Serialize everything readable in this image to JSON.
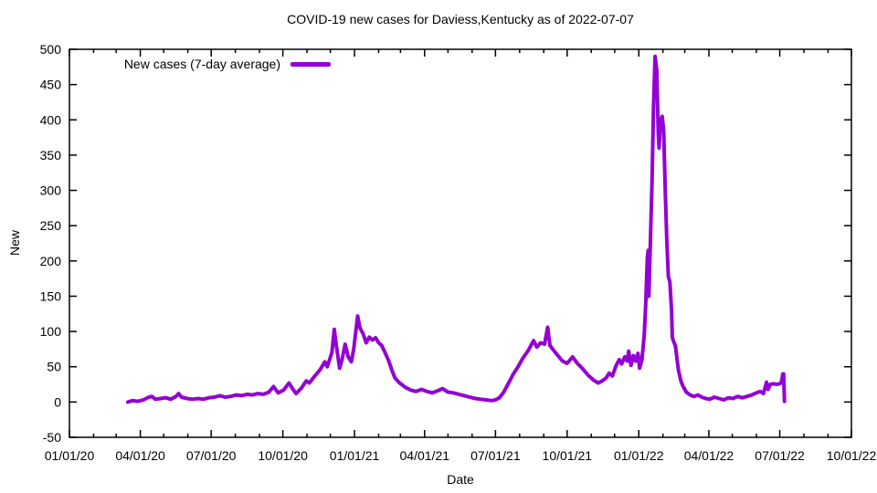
{
  "chart_data": {
    "type": "line",
    "title": "COVID-19 new cases for Daviess,Kentucky as of 2022-07-07",
    "xlabel": "Date",
    "ylabel": "New",
    "background_color": "#ffffff",
    "axis_color": "#000000",
    "grid": false,
    "legend_position": "top-left-inside",
    "legend": [
      {
        "name": "New cases (7-day average)",
        "color": "#9400d3"
      }
    ],
    "x_range": [
      "2020-01-01",
      "2022-10-01"
    ],
    "ylim": [
      -50,
      500
    ],
    "y_tick_step": 50,
    "y_tick_labels": [
      "-50",
      "0",
      "50",
      "100",
      "150",
      "200",
      "250",
      "300",
      "350",
      "400",
      "450",
      "500"
    ],
    "x_tick_labels": [
      "01/01/20",
      "04/01/20",
      "07/01/20",
      "10/01/20",
      "01/01/21",
      "04/01/21",
      "07/01/21",
      "10/01/21",
      "01/01/22",
      "04/01/22",
      "07/01/22",
      "10/01/22"
    ],
    "x_minor_tick_interval": "month",
    "series": [
      {
        "name": "New cases (7-day average)",
        "color": "#9400d3",
        "points": [
          [
            "2020-03-16",
            0
          ],
          [
            "2020-03-22",
            2
          ],
          [
            "2020-03-29",
            1
          ],
          [
            "2020-04-05",
            3
          ],
          [
            "2020-04-12",
            7
          ],
          [
            "2020-04-16",
            8
          ],
          [
            "2020-04-20",
            4
          ],
          [
            "2020-04-27",
            5
          ],
          [
            "2020-05-04",
            6
          ],
          [
            "2020-05-10",
            4
          ],
          [
            "2020-05-17",
            8
          ],
          [
            "2020-05-20",
            12
          ],
          [
            "2020-05-24",
            7
          ],
          [
            "2020-05-31",
            5
          ],
          [
            "2020-06-07",
            4
          ],
          [
            "2020-06-14",
            5
          ],
          [
            "2020-06-21",
            4
          ],
          [
            "2020-06-28",
            6
          ],
          [
            "2020-07-05",
            7
          ],
          [
            "2020-07-12",
            9
          ],
          [
            "2020-07-19",
            7
          ],
          [
            "2020-07-26",
            8
          ],
          [
            "2020-08-02",
            10
          ],
          [
            "2020-08-09",
            9
          ],
          [
            "2020-08-16",
            11
          ],
          [
            "2020-08-23",
            10
          ],
          [
            "2020-08-30",
            12
          ],
          [
            "2020-09-06",
            11
          ],
          [
            "2020-09-13",
            14
          ],
          [
            "2020-09-19",
            22
          ],
          [
            "2020-09-25",
            13
          ],
          [
            "2020-10-02",
            17
          ],
          [
            "2020-10-09",
            27
          ],
          [
            "2020-10-14",
            18
          ],
          [
            "2020-10-18",
            12
          ],
          [
            "2020-10-25",
            20
          ],
          [
            "2020-10-31",
            30
          ],
          [
            "2020-11-04",
            27
          ],
          [
            "2020-11-11",
            37
          ],
          [
            "2020-11-18",
            46
          ],
          [
            "2020-11-24",
            57
          ],
          [
            "2020-11-27",
            50
          ],
          [
            "2020-12-03",
            70
          ],
          [
            "2020-12-06",
            103
          ],
          [
            "2020-12-09",
            78
          ],
          [
            "2020-12-13",
            48
          ],
          [
            "2020-12-16",
            60
          ],
          [
            "2020-12-20",
            82
          ],
          [
            "2020-12-24",
            64
          ],
          [
            "2020-12-28",
            57
          ],
          [
            "2020-12-31",
            75
          ],
          [
            "2021-01-05",
            122
          ],
          [
            "2021-01-08",
            105
          ],
          [
            "2021-01-12",
            97
          ],
          [
            "2021-01-16",
            84
          ],
          [
            "2021-01-20",
            92
          ],
          [
            "2021-01-24",
            88
          ],
          [
            "2021-01-28",
            91
          ],
          [
            "2021-02-01",
            84
          ],
          [
            "2021-02-05",
            80
          ],
          [
            "2021-02-10",
            68
          ],
          [
            "2021-02-14",
            58
          ],
          [
            "2021-02-18",
            45
          ],
          [
            "2021-02-22",
            34
          ],
          [
            "2021-02-28",
            27
          ],
          [
            "2021-03-07",
            21
          ],
          [
            "2021-03-14",
            17
          ],
          [
            "2021-03-21",
            15
          ],
          [
            "2021-03-28",
            18
          ],
          [
            "2021-04-04",
            15
          ],
          [
            "2021-04-11",
            13
          ],
          [
            "2021-04-18",
            16
          ],
          [
            "2021-04-24",
            19
          ],
          [
            "2021-05-01",
            14
          ],
          [
            "2021-05-08",
            13
          ],
          [
            "2021-05-15",
            11
          ],
          [
            "2021-05-22",
            9
          ],
          [
            "2021-05-29",
            7
          ],
          [
            "2021-06-05",
            5
          ],
          [
            "2021-06-12",
            4
          ],
          [
            "2021-06-19",
            3
          ],
          [
            "2021-06-26",
            2
          ],
          [
            "2021-07-01",
            3
          ],
          [
            "2021-07-06",
            6
          ],
          [
            "2021-07-11",
            13
          ],
          [
            "2021-07-17",
            25
          ],
          [
            "2021-07-24",
            40
          ],
          [
            "2021-07-30",
            50
          ],
          [
            "2021-08-05",
            62
          ],
          [
            "2021-08-12",
            73
          ],
          [
            "2021-08-19",
            87
          ],
          [
            "2021-08-23",
            78
          ],
          [
            "2021-08-28",
            84
          ],
          [
            "2021-09-02",
            82
          ],
          [
            "2021-09-06",
            106
          ],
          [
            "2021-09-09",
            80
          ],
          [
            "2021-09-14",
            73
          ],
          [
            "2021-09-19",
            66
          ],
          [
            "2021-09-25",
            58
          ],
          [
            "2021-10-01",
            55
          ],
          [
            "2021-10-08",
            64
          ],
          [
            "2021-10-14",
            55
          ],
          [
            "2021-10-21",
            47
          ],
          [
            "2021-10-28",
            38
          ],
          [
            "2021-11-04",
            31
          ],
          [
            "2021-11-10",
            27
          ],
          [
            "2021-11-15",
            30
          ],
          [
            "2021-11-20",
            34
          ],
          [
            "2021-11-24",
            41
          ],
          [
            "2021-11-28",
            37
          ],
          [
            "2021-12-03",
            52
          ],
          [
            "2021-12-07",
            60
          ],
          [
            "2021-12-10",
            54
          ],
          [
            "2021-12-14",
            64
          ],
          [
            "2021-12-17",
            58
          ],
          [
            "2021-12-19",
            72
          ],
          [
            "2021-12-22",
            52
          ],
          [
            "2021-12-25",
            66
          ],
          [
            "2021-12-28",
            58
          ],
          [
            "2021-12-31",
            69
          ],
          [
            "2022-01-02",
            48
          ],
          [
            "2022-01-05",
            60
          ],
          [
            "2022-01-08",
            95
          ],
          [
            "2022-01-10",
            140
          ],
          [
            "2022-01-12",
            205
          ],
          [
            "2022-01-13",
            215
          ],
          [
            "2022-01-14",
            150
          ],
          [
            "2022-01-16",
            230
          ],
          [
            "2022-01-18",
            310
          ],
          [
            "2022-01-20",
            420
          ],
          [
            "2022-01-22",
            490
          ],
          [
            "2022-01-24",
            470
          ],
          [
            "2022-01-26",
            380
          ],
          [
            "2022-01-27",
            360
          ],
          [
            "2022-01-29",
            398
          ],
          [
            "2022-01-31",
            405
          ],
          [
            "2022-02-02",
            385
          ],
          [
            "2022-02-04",
            300
          ],
          [
            "2022-02-06",
            230
          ],
          [
            "2022-02-08",
            178
          ],
          [
            "2022-02-10",
            170
          ],
          [
            "2022-02-12",
            130
          ],
          [
            "2022-02-13",
            92
          ],
          [
            "2022-02-15",
            85
          ],
          [
            "2022-02-17",
            80
          ],
          [
            "2022-02-19",
            62
          ],
          [
            "2022-02-21",
            45
          ],
          [
            "2022-02-24",
            30
          ],
          [
            "2022-02-27",
            22
          ],
          [
            "2022-03-03",
            14
          ],
          [
            "2022-03-08",
            10
          ],
          [
            "2022-03-13",
            8
          ],
          [
            "2022-03-18",
            10
          ],
          [
            "2022-03-23",
            7
          ],
          [
            "2022-03-28",
            5
          ],
          [
            "2022-04-02",
            4
          ],
          [
            "2022-04-08",
            7
          ],
          [
            "2022-04-14",
            5
          ],
          [
            "2022-04-20",
            3
          ],
          [
            "2022-04-26",
            6
          ],
          [
            "2022-05-02",
            5
          ],
          [
            "2022-05-08",
            8
          ],
          [
            "2022-05-14",
            6
          ],
          [
            "2022-05-20",
            8
          ],
          [
            "2022-05-26",
            10
          ],
          [
            "2022-06-01",
            13
          ],
          [
            "2022-06-06",
            15
          ],
          [
            "2022-06-10",
            12
          ],
          [
            "2022-06-14",
            28
          ],
          [
            "2022-06-16",
            18
          ],
          [
            "2022-06-19",
            25
          ],
          [
            "2022-06-23",
            26
          ],
          [
            "2022-06-27",
            25
          ],
          [
            "2022-07-01",
            26
          ],
          [
            "2022-07-03",
            28
          ],
          [
            "2022-07-05",
            40
          ],
          [
            "2022-07-06",
            40
          ],
          [
            "2022-07-07",
            1
          ]
        ]
      }
    ]
  }
}
